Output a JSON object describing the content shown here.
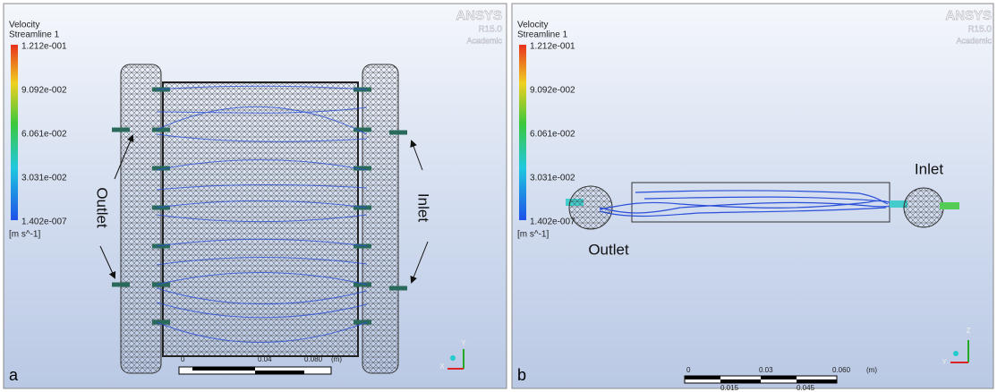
{
  "panels": [
    {
      "label": "a",
      "legend": {
        "title": "Velocity",
        "subtitle": "Streamline 1",
        "ticks": [
          "1.212e-001",
          "9.092e-002",
          "6.061e-002",
          "3.031e-002",
          "1.402e-007"
        ],
        "unit": "[m s^-1]"
      },
      "logo": {
        "brand": "ANSYS",
        "version": "R15.0",
        "edition": "Academic"
      },
      "annotations": {
        "outlet": "Outlet",
        "inlet": "Inlet"
      },
      "scale_bar": {
        "top_labels": [
          "0",
          "0.04",
          "0.080"
        ],
        "unit": "(m)"
      },
      "axes": [
        "Y",
        "X"
      ]
    },
    {
      "label": "b",
      "legend": {
        "title": "Velocity",
        "subtitle": "Streamline 1",
        "ticks": [
          "1.212e-001",
          "9.092e-002",
          "6.061e-002",
          "3.031e-002",
          "1.402e-007"
        ],
        "unit": "[m s^-1]"
      },
      "logo": {
        "brand": "ANSYS",
        "version": "R15.0",
        "edition": "Academic"
      },
      "annotations": {
        "outlet": "Outlet",
        "inlet": "Inlet"
      },
      "scale_bar": {
        "top_labels": [
          "0",
          "0.03",
          "0.060"
        ],
        "bottom_labels": [
          "0.015",
          "0.045"
        ],
        "unit": "(m)"
      },
      "axes": [
        "Z",
        "Y"
      ]
    }
  ]
}
